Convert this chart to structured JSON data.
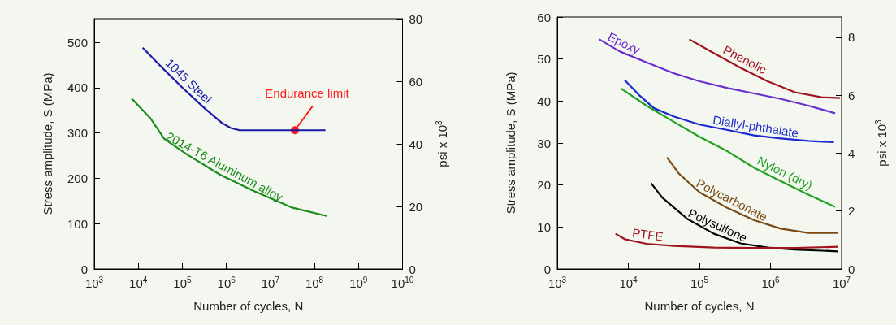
{
  "chart_data": [
    {
      "type": "line",
      "log": "x",
      "xlabel": "Number of cycles, N",
      "ylabel": "Stress amplitude, S (MPa)",
      "y2label": "psi x 10$^{3}$",
      "xlim": [
        1000,
        10000000000
      ],
      "xticks": [
        {
          "value": 1000,
          "label": "10$^{3}$"
        },
        {
          "value": 10000,
          "label": "10$^{4}$"
        },
        {
          "value": 100000,
          "label": "10$^{5}$"
        },
        {
          "value": 1000000,
          "label": "10$^{6}$"
        },
        {
          "value": 10000000,
          "label": "10$^{7}$"
        },
        {
          "value": 100000000,
          "label": "10$^{8}$"
        },
        {
          "value": 1000000000,
          "label": "10$^{9}$"
        },
        {
          "value": 10000000000,
          "label": "10$^{10}$"
        }
      ],
      "ylim": [
        0,
        552
      ],
      "yticks": [
        0,
        100,
        200,
        300,
        400,
        500
      ],
      "y2lim": [
        0,
        80
      ],
      "y2ticks": [
        0,
        20,
        40,
        60,
        80
      ],
      "series": [
        {
          "name": "1045 Steel",
          "color": "#1a1aa8",
          "x": [
            12600,
            31600,
            100000,
            316000,
            794000,
            1260000,
            2000000,
            178000000
          ],
          "values": [
            488,
            448,
            400,
            355,
            322,
            311,
            306,
            306
          ]
        },
        {
          "name": "2014-T6 Aluminum alloy",
          "color": "#1a8c1a",
          "x": [
            7100,
            19000,
            39000,
            126000,
            720000,
            4200000,
            32000000,
            190000000
          ],
          "values": [
            376,
            332,
            287,
            253,
            208,
            172,
            135,
            117
          ]
        }
      ],
      "annotations": [
        {
          "text": "Endurance limit",
          "x": 36000000,
          "y": 306
        }
      ]
    },
    {
      "type": "line",
      "log": "x",
      "xlabel": "Number of cycles, N",
      "ylabel": "Stress amplitude, S (MPa)",
      "y2label": "psi x 10$^{3}$",
      "xlim": [
        1000,
        10000000
      ],
      "xticks": [
        {
          "value": 1000,
          "label": "10$^{3}$"
        },
        {
          "value": 10000,
          "label": "10$^{4}$"
        },
        {
          "value": 100000,
          "label": "10$^{5}$"
        },
        {
          "value": 1000000,
          "label": "10$^{6}$"
        },
        {
          "value": 10000000,
          "label": "10$^{7}$"
        }
      ],
      "ylim": [
        0,
        60
      ],
      "yticks": [
        0,
        10,
        20,
        30,
        40,
        50,
        60
      ],
      "y2lim": [
        0,
        8.7
      ],
      "y2ticks": [
        0,
        2,
        4,
        6,
        8
      ],
      "series": [
        {
          "name": "Epoxy",
          "color": "#6a2ed0",
          "x": [
            3900,
            7600,
            18000,
            44000,
            100000,
            250000,
            590000,
            1400000,
            3400000,
            8100000
          ],
          "values": [
            54.7,
            51.8,
            49.2,
            46.6,
            44.7,
            43.1,
            41.8,
            40.5,
            38.9,
            37.1
          ]
        },
        {
          "name": "Phenolic",
          "color": "#a0141e",
          "x": [
            72000,
            160000,
            380000,
            910000,
            2200000,
            5200000,
            9500000
          ],
          "values": [
            54.7,
            51.4,
            47.9,
            44.7,
            42.1,
            40.9,
            40.7
          ]
        },
        {
          "name": "Diallyl-phthalate",
          "color": "#1a2ad0",
          "x": [
            8900,
            14000,
            23000,
            44000,
            100000,
            250000,
            590000,
            1400000,
            3400000,
            7800000
          ],
          "values": [
            45.0,
            41.5,
            38.3,
            36.3,
            34.4,
            33.1,
            31.8,
            31.1,
            30.5,
            30.2
          ]
        },
        {
          "name": "Nylon (dry)",
          "color": "#22a022",
          "x": [
            7900,
            18000,
            44000,
            100000,
            250000,
            590000,
            1400000,
            3400000,
            8100000
          ],
          "values": [
            43.0,
            38.9,
            35.0,
            31.5,
            28.0,
            24.1,
            20.9,
            17.7,
            14.8
          ]
        },
        {
          "name": "Polycarbonate",
          "color": "#7a4a14",
          "x": [
            35000,
            51000,
            100000,
            250000,
            590000,
            1400000,
            3400000,
            8900000
          ],
          "values": [
            26.6,
            22.8,
            18.3,
            14.5,
            11.6,
            9.6,
            8.6,
            8.6
          ]
        },
        {
          "name": "Polysulfone",
          "color": "#000000",
          "x": [
            21000,
            30000,
            68000,
            160000,
            380000,
            910000,
            2200000,
            8900000
          ],
          "values": [
            20.4,
            17.0,
            11.9,
            8.4,
            6.1,
            5.1,
            4.6,
            4.2
          ]
        },
        {
          "name": "PTFE",
          "color": "#a0141e",
          "x": [
            6600,
            8900,
            18000,
            44000,
            160000,
            590000,
            2200000,
            8900000
          ],
          "values": [
            8.4,
            7.1,
            6.0,
            5.5,
            5.1,
            5.0,
            5.0,
            5.3
          ]
        }
      ]
    }
  ]
}
